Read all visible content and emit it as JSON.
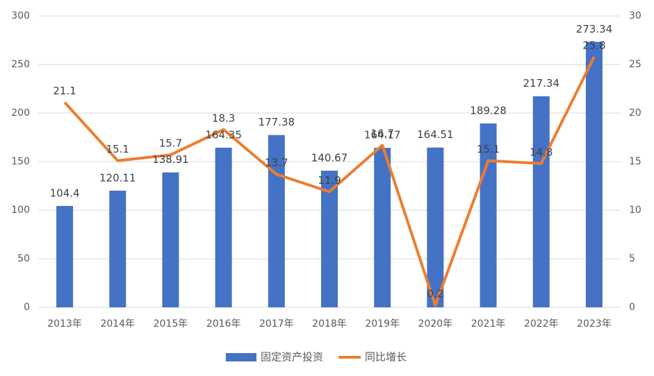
{
  "chart_data": {
    "type": "combo",
    "categories": [
      "2013年",
      "2014年",
      "2015年",
      "2016年",
      "2017年",
      "2018年",
      "2019年",
      "2020年",
      "2021年",
      "2022年",
      "2023年"
    ],
    "series": [
      {
        "name": "固定资产投资",
        "type": "bar",
        "color": "#4472c4",
        "values": [
          104.4,
          120.11,
          138.91,
          164.35,
          177.38,
          140.67,
          164.17,
          164.51,
          189.28,
          217.34,
          273.34
        ]
      },
      {
        "name": "同比增长",
        "type": "line",
        "axis": "y2",
        "color": "#ed7d31",
        "values": [
          21.1,
          15.1,
          15.7,
          18.3,
          13.7,
          11.9,
          16.7,
          0.2,
          15.1,
          14.8,
          25.8
        ]
      }
    ],
    "ylim": [
      0,
      300
    ],
    "yticks": [
      0,
      50,
      100,
      150,
      200,
      250,
      300
    ],
    "y2lim": [
      0,
      30
    ],
    "y2ticks": [
      0,
      5,
      10,
      15,
      20,
      25,
      30
    ],
    "grid": true,
    "legend": "bottom"
  }
}
